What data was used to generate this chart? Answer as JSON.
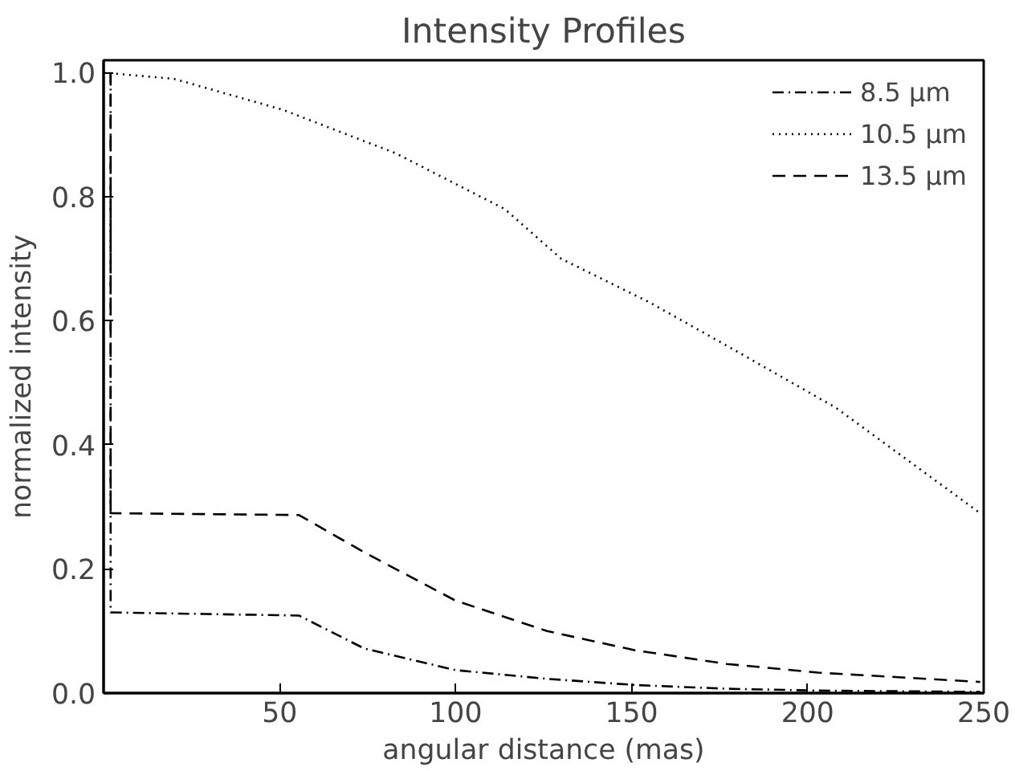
{
  "chart_data": {
    "type": "line",
    "title": "Intensity Profiles",
    "xlabel": "angular distance (mas)",
    "ylabel": "normalized intensity",
    "xlim": [
      0,
      250
    ],
    "ylim": [
      0,
      1.02
    ],
    "xticks": [
      50,
      100,
      150,
      200,
      250
    ],
    "yticks": [
      {
        "value": 0,
        "label": "0.0"
      },
      {
        "value": 0.2,
        "label": "0.2"
      },
      {
        "value": 0.4,
        "label": "0.4"
      },
      {
        "value": 0.6,
        "label": "0.6"
      },
      {
        "value": 0.8,
        "label": "0.8"
      },
      {
        "value": 1.0,
        "label": "1.0"
      }
    ],
    "grid": false,
    "legend": "top right",
    "series": [
      {
        "name": "8.5 µm",
        "color": "#000000",
        "line_style": "dashdot",
        "x": [
          2,
          2,
          55.5,
          74,
          100,
          126,
          151,
          177,
          203,
          249
        ],
        "values": [
          1.0,
          0.13,
          0.125,
          0.072,
          0.037,
          0.023,
          0.013,
          0.007,
          0.004,
          0.002
        ]
      },
      {
        "name": "10.5 µm",
        "color": "#000000",
        "line_style": "dotted",
        "x": [
          0,
          20,
          51,
          83,
          114,
          130,
          155,
          177,
          208,
          249
        ],
        "values": [
          1.0,
          0.99,
          0.94,
          0.87,
          0.78,
          0.7,
          0.63,
          0.56,
          0.46,
          0.29
        ]
      },
      {
        "name": "13.5 µm",
        "color": "#000000",
        "line_style": "dashed",
        "x": [
          2,
          2,
          55.5,
          74,
          100,
          126,
          151,
          177,
          203,
          249
        ],
        "values": [
          1.0,
          0.29,
          0.287,
          0.227,
          0.149,
          0.1,
          0.069,
          0.047,
          0.033,
          0.018
        ]
      }
    ]
  }
}
